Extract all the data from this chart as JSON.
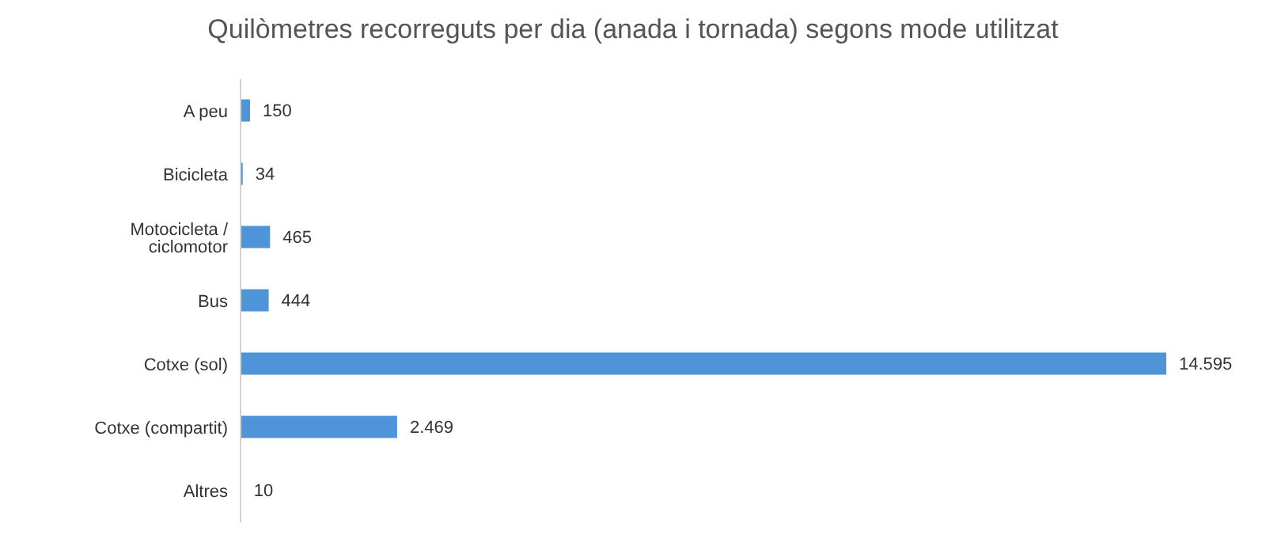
{
  "chart_data": {
    "type": "bar",
    "orientation": "horizontal",
    "title": "Quilòmetres recorreguts per dia (anada i tornada) segons mode utilitzat",
    "categories": [
      "A peu",
      "Bicicleta",
      "Motocicleta / ciclomotor",
      "Bus",
      "Cotxe (sol)",
      "Cotxe (compartit)",
      "Altres"
    ],
    "values": [
      150,
      34,
      465,
      444,
      14595,
      2469,
      10
    ],
    "value_labels": [
      "150",
      "34",
      "465",
      "444",
      "14.595",
      "2.469",
      "10"
    ],
    "color": "#4f93d8"
  }
}
